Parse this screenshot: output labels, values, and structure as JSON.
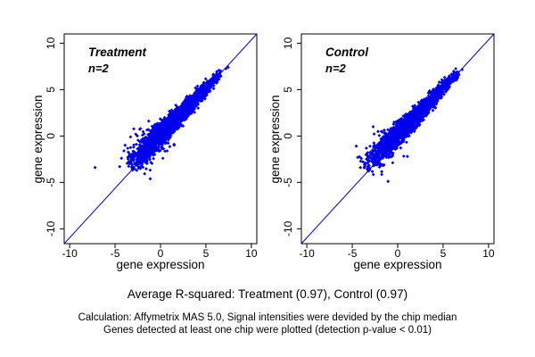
{
  "caption": {
    "line1": "Average R-squared: Treatment (0.97), Control (0.97)",
    "line2": "Calculation: Affymetrix MAS 5.0, Signal intensities were devided by the chip median",
    "line3": "Genes detected at least one chip were plotted (detection p-value < 0.01)"
  },
  "chart_data": [
    {
      "type": "scatter",
      "title": "Treatment",
      "annotation": "n=2",
      "xlabel": "gene expression",
      "ylabel": "gene expression",
      "xlim": [
        -10.6,
        10.6
      ],
      "ylim": [
        -11.6,
        11.0
      ],
      "xticks": [
        -10,
        -5,
        0,
        5,
        10
      ],
      "yticks": [
        -10,
        -5,
        0,
        5,
        10
      ],
      "identity_line": true,
      "r_squared": 0.97,
      "point_color": "#0000EE",
      "line_color": "#0000CC",
      "title_color": "#ABABAB",
      "cluster": {
        "seed": 11,
        "n": 2400,
        "t_min": -3.6,
        "t_max": 7.0,
        "sd_near": 0.2,
        "sd_far": 0.6,
        "bias": 0.12,
        "spray_n": 60,
        "spray_t_span": 4.0,
        "spray_sd": 1.1
      },
      "outliers": [
        [
          -7.2,
          -3.4
        ],
        [
          -4.5,
          -3.3
        ],
        [
          -4.3,
          -2.4
        ],
        [
          -3.3,
          -0.1
        ],
        [
          -1.3,
          1.6
        ],
        [
          -2.2,
          0.8
        ],
        [
          -3.9,
          -1.0
        ],
        [
          7.2,
          7.25
        ],
        [
          7.45,
          7.4
        ]
      ]
    },
    {
      "type": "scatter",
      "title": "Control",
      "annotation": "n=2",
      "xlabel": "gene expression",
      "ylabel": "gene expression",
      "xlim": [
        -10.6,
        10.6
      ],
      "ylim": [
        -11.6,
        11.0
      ],
      "xticks": [
        -10,
        -5,
        0,
        5,
        10
      ],
      "yticks": [
        -10,
        -5,
        0,
        5,
        10
      ],
      "identity_line": true,
      "r_squared": 0.97,
      "point_color": "#0000EE",
      "line_color": "#0000CC",
      "title_color": "#ABABAB",
      "cluster": {
        "seed": 23,
        "n": 2400,
        "t_min": -3.6,
        "t_max": 7.0,
        "sd_near": 0.2,
        "sd_far": 0.6,
        "bias": 0.12,
        "spray_n": 48,
        "spray_t_span": 3.5,
        "spray_sd": 1.0
      },
      "outliers": [
        [
          -2.7,
          1.0
        ],
        [
          -4.4,
          -2.3
        ],
        [
          -3.6,
          -3.0
        ],
        [
          -1.8,
          0.5
        ],
        [
          -4.1,
          -3.4
        ],
        [
          7.1,
          7.15
        ]
      ]
    }
  ]
}
